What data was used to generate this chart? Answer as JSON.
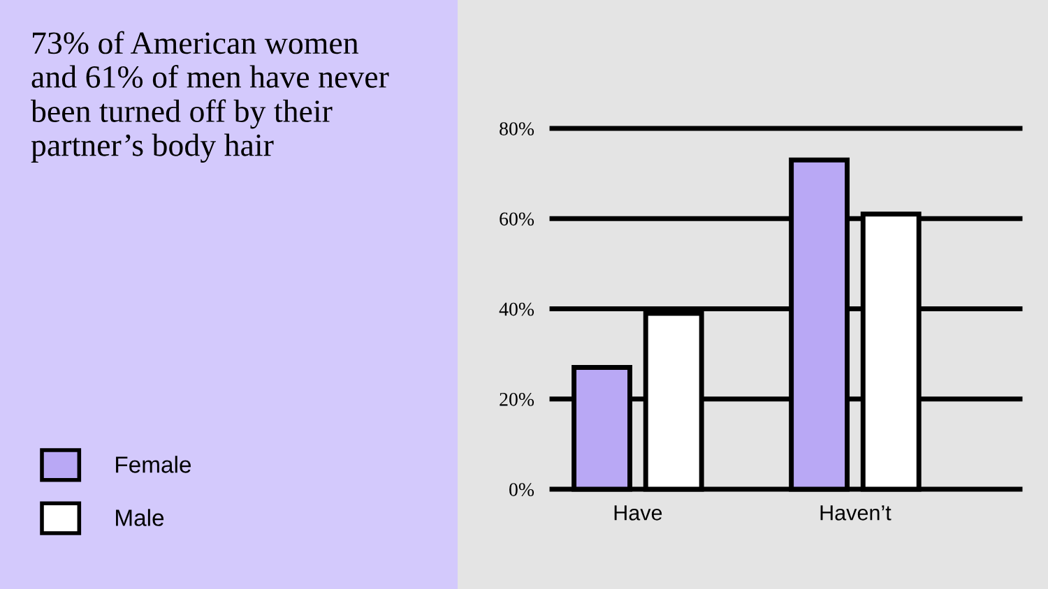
{
  "chart_data": {
    "type": "bar",
    "title": "73% of American women\nand 61% of men have never\nbeen turned off by their\npartner’s body hair",
    "categories": [
      "Have",
      "Haven’t"
    ],
    "series": [
      {
        "name": "Female",
        "color": "#b9a8f5",
        "values": [
          27,
          73
        ]
      },
      {
        "name": "Male",
        "color": "#ffffff",
        "values": [
          39,
          61
        ]
      }
    ],
    "ylim": [
      0,
      80
    ],
    "yticks": [
      {
        "value": 0,
        "label": "0%"
      },
      {
        "value": 20,
        "label": "20%"
      },
      {
        "value": 40,
        "label": "40%"
      },
      {
        "value": 60,
        "label": "60%"
      },
      {
        "value": 80,
        "label": "80%"
      }
    ],
    "grid": "y",
    "legend": "left"
  }
}
